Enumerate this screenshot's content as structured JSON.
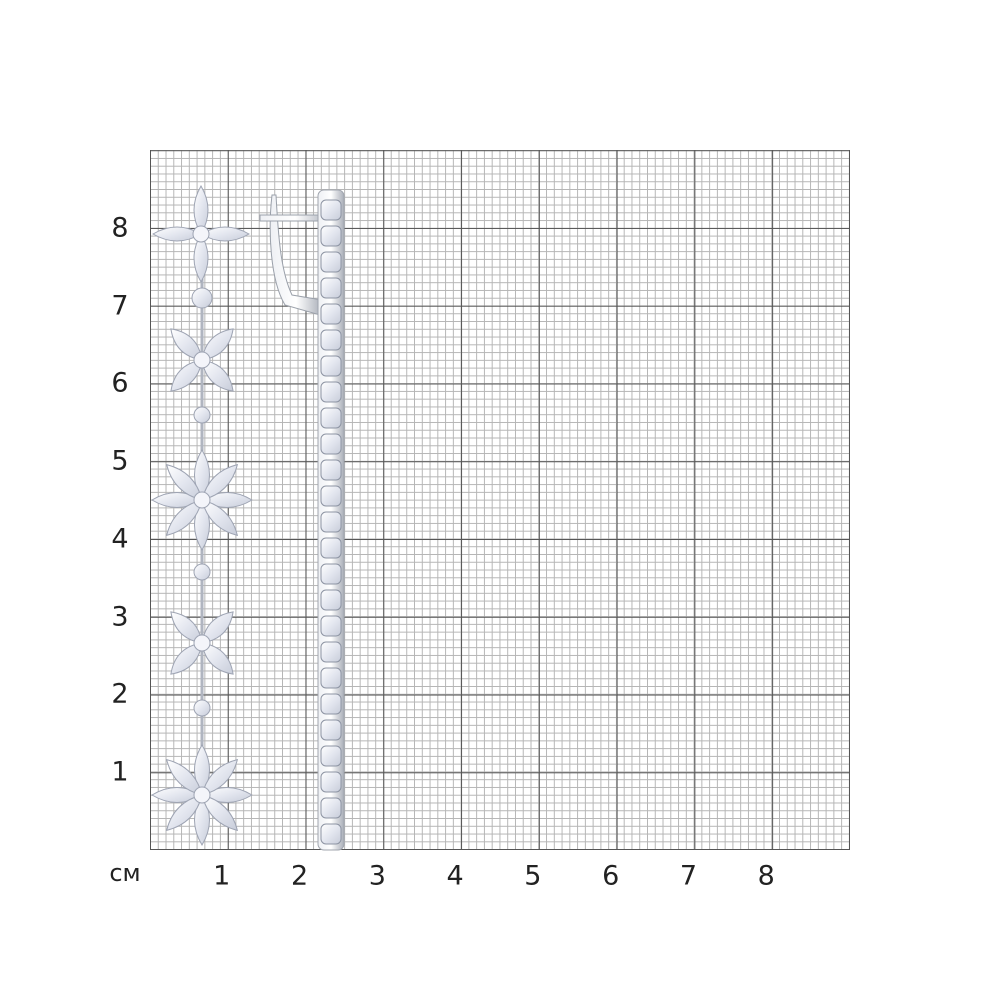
{
  "unit_label": "см",
  "x_ticks": [
    "1",
    "2",
    "3",
    "4",
    "5",
    "6",
    "7",
    "8"
  ],
  "y_ticks": [
    "1",
    "2",
    "3",
    "4",
    "5",
    "6",
    "7",
    "8"
  ],
  "product": {
    "icon": "drop-earrings-image",
    "stone_color": "#eef0f6",
    "metal_color": "#c8ccd4"
  }
}
